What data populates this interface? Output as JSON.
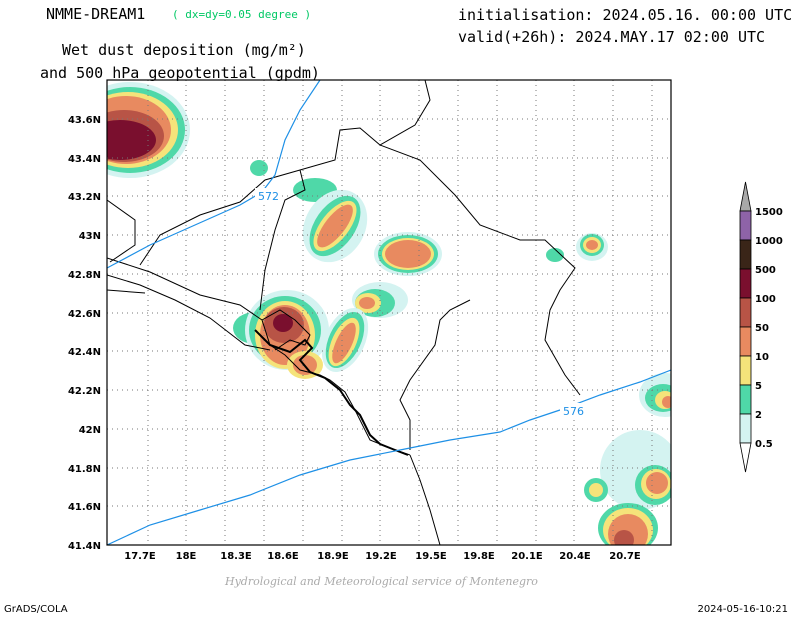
{
  "header": {
    "model_name": "NMME-DREAM1",
    "model_resolution": "( dx=dy=0.05 degree )",
    "initialisation": "initialisation: 2024.05.16. 00:00 UTC",
    "valid": "valid(+26h): 2024.MAY.17 02:00 UTC",
    "title_line1": "Wet dust deposition (mg/m²)",
    "title_line2": "and 500 hPa geopotential (gpdm)"
  },
  "map": {
    "lon_ticks": [
      "17.7E",
      "18E",
      "18.3E",
      "18.6E",
      "18.9E",
      "19.2E",
      "19.5E",
      "19.8E",
      "20.1E",
      "20.4E",
      "20.7E"
    ],
    "lat_ticks": [
      "43.6N",
      "43.4N",
      "43.2N",
      "43N",
      "42.8N",
      "42.6N",
      "42.4N",
      "42.2N",
      "42N",
      "41.8N",
      "41.6N",
      "41.4N"
    ],
    "contours": [
      {
        "label": "572",
        "color": "#1e90e6"
      },
      {
        "label": "576",
        "color": "#1e90e6"
      }
    ]
  },
  "legend": {
    "levels": [
      {
        "label": "1500",
        "color": "#a9a9a9"
      },
      {
        "label": "1000",
        "color": "#8e63a8"
      },
      {
        "label": "500",
        "color": "#3a2518"
      },
      {
        "label": "100",
        "color": "#7a0f2e"
      },
      {
        "label": "50",
        "color": "#b85446"
      },
      {
        "label": "10",
        "color": "#e88a60"
      },
      {
        "label": "5",
        "color": "#f5e37a"
      },
      {
        "label": "2",
        "color": "#4fd8a8"
      },
      {
        "label": "0.5",
        "color": "#d4f3f1"
      }
    ]
  },
  "footer": {
    "credit": "Hydrological and Meteorological service of Montenegro",
    "left": "GrADS/COLA",
    "right": "2024-05-16-10:21"
  }
}
